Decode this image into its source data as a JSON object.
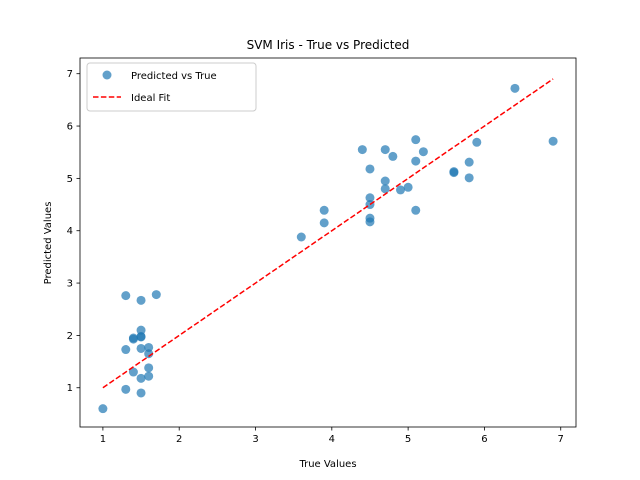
{
  "chart_data": {
    "type": "scatter",
    "title": "SVM Iris - True vs Predicted",
    "xlabel": "True Values",
    "ylabel": "Predicted Values",
    "xlim": [
      0.7,
      7.2
    ],
    "ylim": [
      0.25,
      7.3
    ],
    "xticks": [
      "1",
      "2",
      "3",
      "4",
      "5",
      "6",
      "7"
    ],
    "yticks": [
      "1",
      "2",
      "3",
      "4",
      "5",
      "6",
      "7"
    ],
    "grid": false,
    "legend_placement": "top-left",
    "series": [
      {
        "name": "Predicted vs True",
        "kind": "scatter",
        "color": "#1f77b4",
        "x": [
          1.0,
          1.3,
          1.3,
          1.3,
          1.4,
          1.4,
          1.4,
          1.5,
          1.5,
          1.5,
          1.5,
          1.5,
          1.5,
          1.5,
          1.6,
          1.6,
          1.6,
          1.6,
          1.7,
          3.6,
          3.9,
          3.9,
          4.4,
          4.5,
          4.5,
          4.5,
          4.5,
          4.5,
          4.7,
          4.7,
          4.7,
          4.8,
          4.9,
          5.0,
          5.1,
          5.1,
          5.1,
          5.2,
          5.6,
          5.6,
          5.8,
          5.8,
          5.9,
          6.4,
          6.9
        ],
        "y": [
          0.6,
          0.97,
          1.73,
          2.76,
          1.3,
          1.93,
          1.95,
          0.9,
          1.18,
          1.75,
          1.97,
          1.98,
          2.1,
          2.67,
          1.22,
          1.38,
          1.65,
          1.77,
          2.78,
          3.88,
          4.15,
          4.39,
          5.55,
          4.17,
          4.24,
          4.5,
          4.63,
          5.18,
          4.8,
          4.95,
          5.55,
          5.42,
          4.78,
          4.83,
          4.39,
          5.33,
          5.74,
          5.51,
          5.11,
          5.13,
          5.01,
          5.31,
          5.69,
          6.72,
          5.71
        ]
      },
      {
        "name": "Ideal Fit",
        "kind": "line",
        "style": "dashed",
        "color": "#ff0000",
        "x": [
          1.0,
          6.9
        ],
        "y": [
          1.0,
          6.9
        ]
      }
    ]
  }
}
